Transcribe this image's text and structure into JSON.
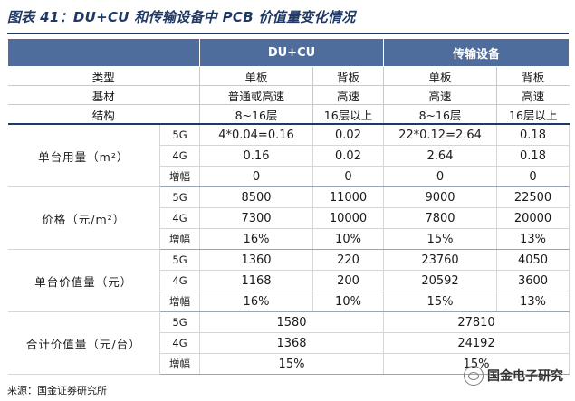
{
  "title": "图表 41：DU+CU 和传输设备中 PCB 价值量变化情况",
  "header": {
    "col1": "DU+CU",
    "col2": "传输设备"
  },
  "meta_rows": [
    {
      "label": "类型",
      "c1": "单板",
      "c2": "背板",
      "c3": "单板",
      "c4": "背板"
    },
    {
      "label": "基材",
      "c1": "普通或高速",
      "c2": "高速",
      "c3": "高速",
      "c4": "高速"
    },
    {
      "label": "结构",
      "c1": "8~16层",
      "c2": "16层以上",
      "c3": "8~16层",
      "c4": "16层以上"
    }
  ],
  "groups": [
    {
      "label": "单台用量（m²）",
      "rows": [
        {
          "sub": "5G",
          "c1": "4*0.04=0.16",
          "c2": "0.02",
          "c3": "22*0.12=2.64",
          "c4": "0.18"
        },
        {
          "sub": "4G",
          "c1": "0.16",
          "c2": "0.02",
          "c3": "2.64",
          "c4": "0.18"
        },
        {
          "sub": "增幅",
          "c1": "0",
          "c2": "0",
          "c3": "0",
          "c4": "0"
        }
      ]
    },
    {
      "label": "价格（元/m²）",
      "rows": [
        {
          "sub": "5G",
          "c1": "8500",
          "c2": "11000",
          "c3": "9000",
          "c4": "22500"
        },
        {
          "sub": "4G",
          "c1": "7300",
          "c2": "10000",
          "c3": "7800",
          "c4": "20000"
        },
        {
          "sub": "增幅",
          "c1": "16%",
          "c2": "10%",
          "c3": "15%",
          "c4": "13%"
        }
      ]
    },
    {
      "label": "单台价值量（元）",
      "rows": [
        {
          "sub": "5G",
          "c1": "1360",
          "c2": "220",
          "c3": "23760",
          "c4": "4050"
        },
        {
          "sub": "4G",
          "c1": "1168",
          "c2": "200",
          "c3": "20592",
          "c4": "3600"
        },
        {
          "sub": "增幅",
          "c1": "16%",
          "c2": "10%",
          "c3": "15%",
          "c4": "13%"
        }
      ]
    }
  ],
  "total": {
    "label": "合计价值量（元/台）",
    "rows": [
      {
        "sub": "5G",
        "du": "1580",
        "tx": "27810"
      },
      {
        "sub": "4G",
        "du": "1368",
        "tx": "24192"
      },
      {
        "sub": "增幅",
        "du": "15%",
        "tx": "15%"
      }
    ]
  },
  "source": "来源：国金证券研究所",
  "watermark": {
    "text": "国金电子研究",
    "icon": "wechat-icon"
  }
}
